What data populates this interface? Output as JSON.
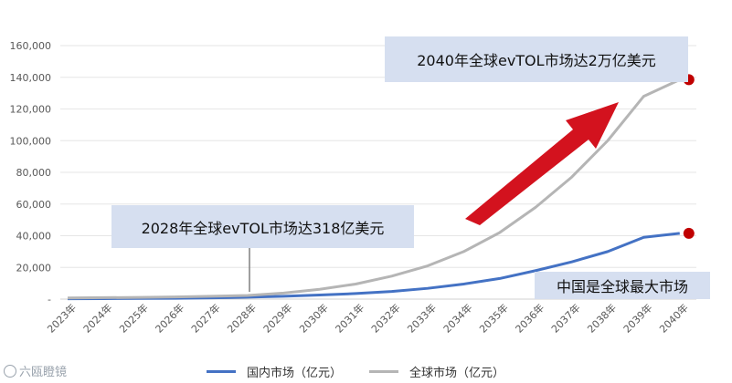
{
  "chart_data": {
    "type": "line",
    "x": [
      "2023年",
      "2024年",
      "2025年",
      "2026年",
      "2027年",
      "2028年",
      "2029年",
      "2030年",
      "2031年",
      "2032年",
      "2033年",
      "2034年",
      "2035年",
      "2036年",
      "2037年",
      "2038年",
      "2039年",
      "2040年"
    ],
    "y_ticks": [
      "160,000",
      "140,000",
      "120,000",
      "100,000",
      "80,000",
      "60,000",
      "40,000",
      "20,000",
      "-"
    ],
    "ylim": [
      0,
      160000
    ],
    "grid": "horizontal",
    "legend_position": "bottom",
    "series": [
      {
        "name": "国内市场（亿元）",
        "color": "#4472c4",
        "values": [
          200,
          300,
          400,
          500,
          800,
          1200,
          1800,
          2600,
          3500,
          4800,
          6800,
          9500,
          13000,
          18000,
          23500,
          30000,
          39000,
          41500
        ]
      },
      {
        "name": "全球市场（亿元）",
        "color": "#b5b5b5",
        "values": [
          700,
          900,
          1100,
          1400,
          1800,
          2300,
          3800,
          6200,
          9500,
          14500,
          21000,
          30000,
          42000,
          58000,
          77000,
          100000,
          128000,
          138500
        ]
      }
    ],
    "annotations": [
      {
        "text": "2040年全球evTOL市场达2万亿美元"
      },
      {
        "text": "2028年全球evTOL市场达318亿美元"
      },
      {
        "text": "中国是全球最大市场"
      }
    ]
  },
  "colors": {
    "arrow": "#d3121e",
    "marker": "#c00000",
    "annotation_bg": "#d6dff0"
  },
  "watermark": "六瓯瞪镜"
}
